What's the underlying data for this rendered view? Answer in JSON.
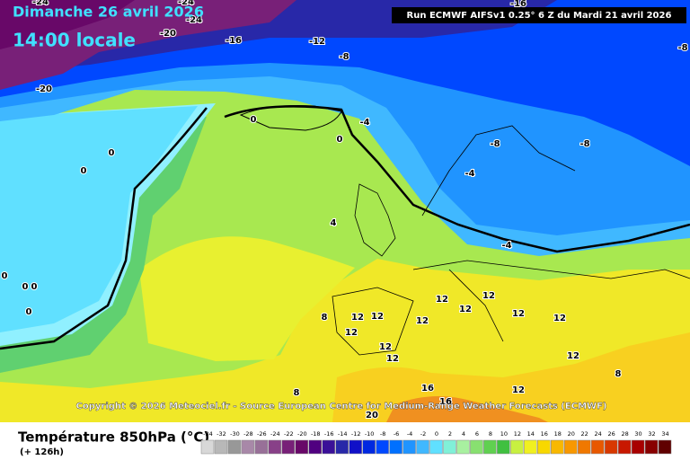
{
  "header": {
    "date": "Dimanche 26 avril 2026",
    "time": "14:00 locale",
    "run": "Run ECMWF AIFSv1 0.25° 6 Z du Mardi 21 avril 2026"
  },
  "copyright": "Copyright © 2026 Meteociel.fr - Source European Centre for Medium-Range Weather Forecasts (ECMWF)",
  "map_labels": [
    -24,
    -24,
    -24,
    -20,
    -16,
    -12,
    -8,
    -16,
    -8,
    -20,
    0,
    0,
    -4,
    0,
    0,
    -8,
    -8,
    -4,
    4,
    -4,
    0,
    0,
    0,
    0,
    12,
    12,
    8,
    12,
    12,
    12,
    12,
    12,
    12,
    12,
    12,
    12,
    12,
    8,
    16,
    12,
    16,
    8,
    20
  ],
  "legend": {
    "title": "Température 850hPa (°C)",
    "subtitle": "(+ 126h)",
    "ticks": [
      -34,
      -32,
      -30,
      -28,
      -26,
      -24,
      -22,
      -20,
      -18,
      -16,
      -14,
      -12,
      -10,
      -8,
      -6,
      -4,
      -2,
      0,
      2,
      4,
      6,
      8,
      10,
      12,
      14,
      16,
      18,
      20,
      22,
      24,
      26,
      28,
      30,
      32,
      34
    ],
    "colors": [
      "#d8d8d8",
      "#b8b8b8",
      "#989898",
      "#a888a8",
      "#987098",
      "#884088",
      "#782078",
      "#680868",
      "#500080",
      "#3a1098",
      "#2828a8",
      "#1010c8",
      "#0028e0",
      "#0048ff",
      "#0070ff",
      "#2094ff",
      "#40b8ff",
      "#60e0ff",
      "#80f0d8",
      "#a8f0a0",
      "#88e070",
      "#60d050",
      "#40c040",
      "#c8f040",
      "#f0f020",
      "#f8d800",
      "#f8b800",
      "#f89800",
      "#f07800",
      "#e85800",
      "#d83800",
      "#c81800",
      "#a80000",
      "#880000",
      "#600000"
    ]
  }
}
